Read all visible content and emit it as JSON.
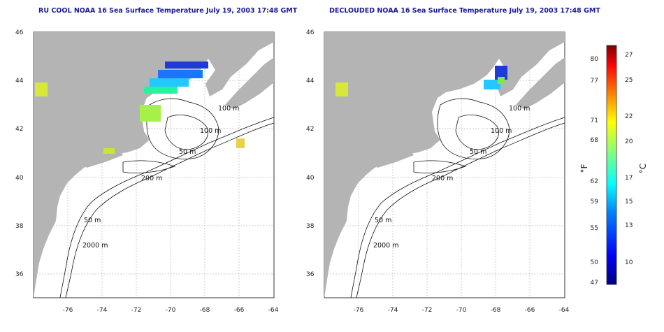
{
  "panels": [
    {
      "title": "RU COOL NOAA 16 Sea Surface Temperature July 19, 2003 17:48 GMT",
      "contour_labels": [
        "100 m",
        "100 m",
        "50 m",
        "200 m",
        "50 m",
        "2000 m"
      ]
    },
    {
      "title": "DECLOUDED NOAA 16 Sea Surface Temperature July 19, 2003 17:48 GMT",
      "contour_labels": [
        "100 m",
        "100 m",
        "50 m",
        "200 m",
        "50 m",
        "2000 m"
      ]
    }
  ],
  "axes": {
    "lon_ticks": [
      "-76",
      "-74",
      "-72",
      "-70",
      "-68",
      "-66",
      "-64"
    ],
    "lat_ticks": [
      "46",
      "44",
      "42",
      "40",
      "38",
      "36"
    ]
  },
  "colorbar": {
    "fahrenheit_label": "°F",
    "celsius_label": "°C",
    "fahrenheit_ticks": [
      "80",
      "77",
      "71",
      "68",
      "62",
      "59",
      "55",
      "50",
      "47"
    ],
    "celsius_ticks": [
      "27",
      "25",
      "22",
      "20",
      "17",
      "15",
      "13",
      "10"
    ]
  },
  "colors": {
    "land": "#b4b4b4",
    "grid": "#b8b8b8",
    "title": "#1a1a9a",
    "colorbar_gradient": [
      "#00007f",
      "#0000ff",
      "#0080ff",
      "#00ffff",
      "#80ff80",
      "#ffff00",
      "#ff8000",
      "#ff0000",
      "#7f0000"
    ]
  }
}
